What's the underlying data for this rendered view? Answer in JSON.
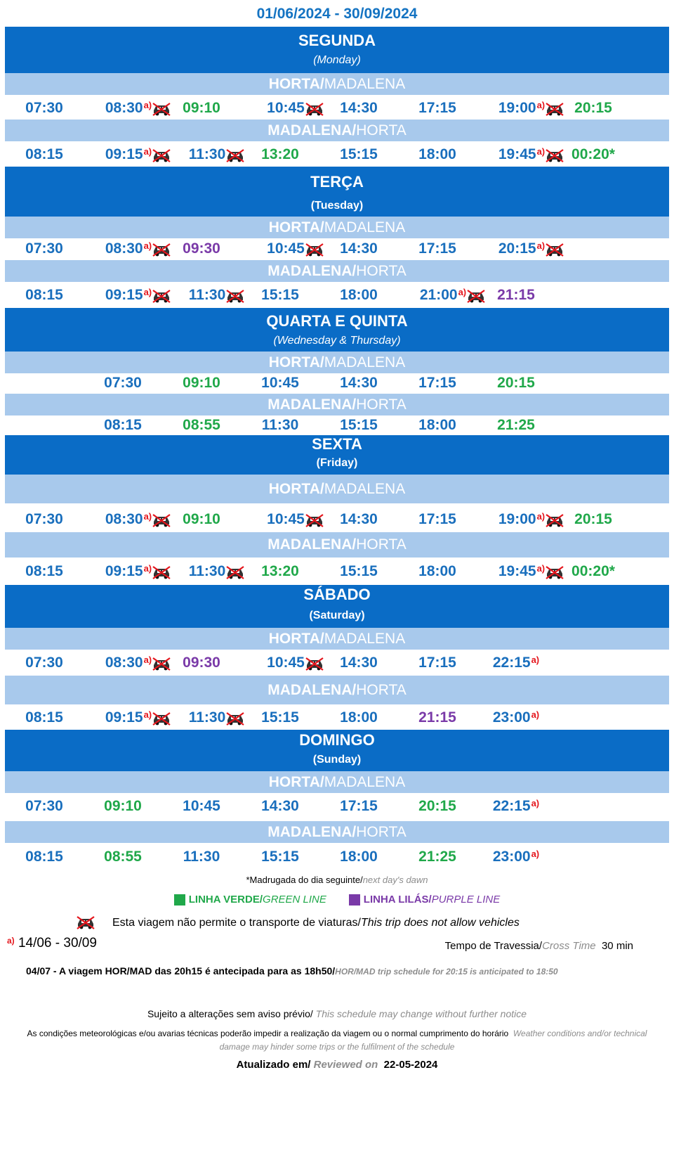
{
  "period": "01/06/2024 - 30/09/2024",
  "colors": {
    "day_bar": "#0a6cc6",
    "route_bar": "#a8c9ec",
    "time_blue": "#1a6fbd",
    "green_line": "#20a84a",
    "purple_line": "#7a3aa8",
    "note_red": "#e4141b"
  },
  "days": [
    {
      "name": "SEGUNDA",
      "sub": "(Monday)",
      "routes": [
        {
          "from": "HORTA",
          "to": "MADALENA",
          "trips": [
            {
              "t": "07:30",
              "c": "blue",
              "col": 0
            },
            {
              "t": "08:30",
              "c": "blue",
              "col": 1,
              "note": "a)",
              "nocar": true
            },
            {
              "t": "09:10",
              "c": "green",
              "col": 2
            },
            {
              "t": "10:45",
              "c": "blue",
              "col": 3,
              "nocar": true
            },
            {
              "t": "14:30",
              "c": "blue",
              "col": 4
            },
            {
              "t": "17:15",
              "c": "blue",
              "col": 5
            },
            {
              "t": "19:00",
              "c": "blue",
              "col": 6,
              "note": "a)",
              "nocar": true
            },
            {
              "t": "20:15",
              "c": "green",
              "col": 7
            }
          ]
        },
        {
          "from": "MADALENA",
          "to": "HORTA",
          "trips": [
            {
              "t": "08:15",
              "c": "blue",
              "col": 0
            },
            {
              "t": "09:15",
              "c": "blue",
              "col": 1,
              "note": "a)",
              "nocar": true
            },
            {
              "t": "11:30",
              "c": "blue",
              "col": 2,
              "nocar": true
            },
            {
              "t": "13:20",
              "c": "green",
              "col": 3
            },
            {
              "t": "15:15",
              "c": "blue",
              "col": 4
            },
            {
              "t": "18:00",
              "c": "blue",
              "col": 5
            },
            {
              "t": "19:45",
              "c": "blue",
              "col": 6,
              "note": "a)",
              "nocar": true
            },
            {
              "t": "00:20*",
              "c": "green",
              "col": 7
            }
          ]
        }
      ]
    },
    {
      "name": "TERÇA",
      "sub": "(Tuesday)",
      "routes": [
        {
          "from": "HORTA",
          "to": "MADALENA",
          "trips": [
            {
              "t": "07:30",
              "c": "blue",
              "col": 0
            },
            {
              "t": "08:30",
              "c": "blue",
              "col": 1,
              "note": "a)",
              "nocar": true
            },
            {
              "t": "09:30",
              "c": "purple",
              "col": 2
            },
            {
              "t": "10:45",
              "c": "blue",
              "col": 3,
              "nocar": true
            },
            {
              "t": "14:30",
              "c": "blue",
              "col": 4
            },
            {
              "t": "17:15",
              "c": "blue",
              "col": 5
            },
            {
              "t": "20:15",
              "c": "blue",
              "col": 6,
              "note": "a)",
              "nocar": true
            }
          ]
        },
        {
          "from": "MADALENA",
          "to": "HORTA",
          "trips": [
            {
              "t": "08:15",
              "c": "blue",
              "col": 0
            },
            {
              "t": "09:15",
              "c": "blue",
              "col": 1,
              "note": "a)",
              "nocar": true
            },
            {
              "t": "11:30",
              "c": "blue",
              "col": 2,
              "nocar": true
            },
            {
              "t": "15:15",
              "c": "blue",
              "col": 3
            },
            {
              "t": "18:00",
              "c": "blue",
              "col": 4
            },
            {
              "t": "21:00",
              "c": "blue",
              "col": 5,
              "note": "a)",
              "nocar": true
            },
            {
              "t": "21:15",
              "c": "purple",
              "col": 6
            }
          ]
        }
      ]
    },
    {
      "name": "QUARTA E QUINTA",
      "sub": "(Wednesday & Thursday)",
      "routes": [
        {
          "from": "HORTA",
          "to": "MADALENA",
          "trips": [
            {
              "t": "07:30",
              "c": "blue",
              "col": 1
            },
            {
              "t": "09:10",
              "c": "green",
              "col": 2
            },
            {
              "t": "10:45",
              "c": "blue",
              "col": 3
            },
            {
              "t": "14:30",
              "c": "blue",
              "col": 4
            },
            {
              "t": "17:15",
              "c": "blue",
              "col": 5
            },
            {
              "t": "20:15",
              "c": "green",
              "col": 6
            }
          ]
        },
        {
          "from": "MADALENA",
          "to": "HORTA",
          "trips": [
            {
              "t": "08:15",
              "c": "blue",
              "col": 1
            },
            {
              "t": "08:55",
              "c": "green",
              "col": 2
            },
            {
              "t": "11:30",
              "c": "blue",
              "col": 3
            },
            {
              "t": "15:15",
              "c": "blue",
              "col": 4
            },
            {
              "t": "18:00",
              "c": "blue",
              "col": 5
            },
            {
              "t": "21:25",
              "c": "green",
              "col": 6
            }
          ]
        }
      ]
    },
    {
      "name": "SEXTA",
      "sub": "(Friday)",
      "routes": [
        {
          "from": "HORTA",
          "to": "MADALENA",
          "trips": [
            {
              "t": "07:30",
              "c": "blue",
              "col": 0
            },
            {
              "t": "08:30",
              "c": "blue",
              "col": 1,
              "note": "a)",
              "nocar": true
            },
            {
              "t": "09:10",
              "c": "green",
              "col": 2
            },
            {
              "t": "10:45",
              "c": "blue",
              "col": 3,
              "nocar": true
            },
            {
              "t": "14:30",
              "c": "blue",
              "col": 4
            },
            {
              "t": "17:15",
              "c": "blue",
              "col": 5
            },
            {
              "t": "19:00",
              "c": "blue",
              "col": 6,
              "note": "a)",
              "nocar": true
            },
            {
              "t": "20:15",
              "c": "green",
              "col": 7
            }
          ]
        },
        {
          "from": "MADALENA",
          "to": "HORTA",
          "trips": [
            {
              "t": "08:15",
              "c": "blue",
              "col": 0
            },
            {
              "t": "09:15",
              "c": "blue",
              "col": 1,
              "note": "a)",
              "nocar": true
            },
            {
              "t": "11:30",
              "c": "blue",
              "col": 2,
              "nocar": true
            },
            {
              "t": "13:20",
              "c": "green",
              "col": 3
            },
            {
              "t": "15:15",
              "c": "blue",
              "col": 4
            },
            {
              "t": "18:00",
              "c": "blue",
              "col": 5
            },
            {
              "t": "19:45",
              "c": "blue",
              "col": 6,
              "note": "a)",
              "nocar": true
            },
            {
              "t": "00:20*",
              "c": "green",
              "col": 7
            }
          ]
        }
      ]
    },
    {
      "name": "SÁBADO",
      "sub": "(Saturday)",
      "routes": [
        {
          "from": "HORTA",
          "to": "MADALENA",
          "trips": [
            {
              "t": "07:30",
              "c": "blue",
              "col": 0
            },
            {
              "t": "08:30",
              "c": "blue",
              "col": 1,
              "note": "a)",
              "nocar": true
            },
            {
              "t": "09:30",
              "c": "purple",
              "col": 2
            },
            {
              "t": "10:45",
              "c": "blue",
              "col": 3,
              "nocar": true
            },
            {
              "t": "14:30",
              "c": "blue",
              "col": 4
            },
            {
              "t": "17:15",
              "c": "blue",
              "col": 5
            },
            {
              "t": "22:15",
              "c": "blue",
              "col": 6,
              "note": "a)"
            }
          ]
        },
        {
          "from": "MADALENA",
          "to": "HORTA",
          "trips": [
            {
              "t": "08:15",
              "c": "blue",
              "col": 0
            },
            {
              "t": "09:15",
              "c": "blue",
              "col": 1,
              "note": "a)",
              "nocar": true
            },
            {
              "t": "11:30",
              "c": "blue",
              "col": 2,
              "nocar": true
            },
            {
              "t": "15:15",
              "c": "blue",
              "col": 3
            },
            {
              "t": "18:00",
              "c": "blue",
              "col": 4
            },
            {
              "t": "21:15",
              "c": "purple",
              "col": 5
            },
            {
              "t": "23:00",
              "c": "blue",
              "col": 6,
              "note": "a)"
            }
          ]
        }
      ]
    },
    {
      "name": "DOMINGO",
      "sub": "(Sunday)",
      "routes": [
        {
          "from": "HORTA",
          "to": "MADALENA",
          "trips": [
            {
              "t": "07:30",
              "c": "blue",
              "col": 0
            },
            {
              "t": "09:10",
              "c": "green",
              "col": 1
            },
            {
              "t": "10:45",
              "c": "blue",
              "col": 2
            },
            {
              "t": "14:30",
              "c": "blue",
              "col": 3
            },
            {
              "t": "17:15",
              "c": "blue",
              "col": 4
            },
            {
              "t": "20:15",
              "c": "green",
              "col": 5
            },
            {
              "t": "22:15",
              "c": "blue",
              "col": 6,
              "note": "a)"
            }
          ]
        },
        {
          "from": "MADALENA",
          "to": "HORTA",
          "trips": [
            {
              "t": "08:15",
              "c": "blue",
              "col": 0
            },
            {
              "t": "08:55",
              "c": "green",
              "col": 1
            },
            {
              "t": "11:30",
              "c": "blue",
              "col": 2
            },
            {
              "t": "15:15",
              "c": "blue",
              "col": 3
            },
            {
              "t": "18:00",
              "c": "blue",
              "col": 4
            },
            {
              "t": "21:25",
              "c": "green",
              "col": 5
            },
            {
              "t": "23:00",
              "c": "blue",
              "col": 6,
              "note": "a)"
            }
          ]
        }
      ]
    }
  ],
  "notes": {
    "dawn_pt": "*Madrugada do dia seguinte/",
    "dawn_en": "next day's dawn",
    "green_pt": "LINHA VERDE/",
    "green_en": "GREEN LINE",
    "purple_pt": "LINHA LILÁS/",
    "purple_en": "PURPLE LINE",
    "nocar_pt": "Esta viagem não permite o transporte de viaturas/",
    "nocar_en": "This trip does not allow vehicles",
    "a_mark": "a)",
    "a_dates": "14/06 - 30/09",
    "cross_pt": "Tempo de Travessia/",
    "cross_en": "Cross Time",
    "cross_value": "30 min",
    "special_pt": "04/07 - A viagem HOR/MAD das 20h15 é antecipada para as 18h50/",
    "special_en": "HOR/MAD trip schedule for 20:15 is anticipated to 18:50",
    "subject_pt": "Sujeito a alterações sem aviso prévio/",
    "subject_en": " This schedule may change without further notice",
    "weather_pt": "As condições meteorológicas e/ou avarias técnicas poderão impedir a realização da viagem ou o normal cumprimento do horário",
    "weather_en": "Weather conditions and/or technical damage may hinder some trips or the fulfilment of the schedule",
    "updated_pt": "Atualizado em/ ",
    "updated_en": "Reviewed on",
    "updated_date": "22-05-2024"
  }
}
